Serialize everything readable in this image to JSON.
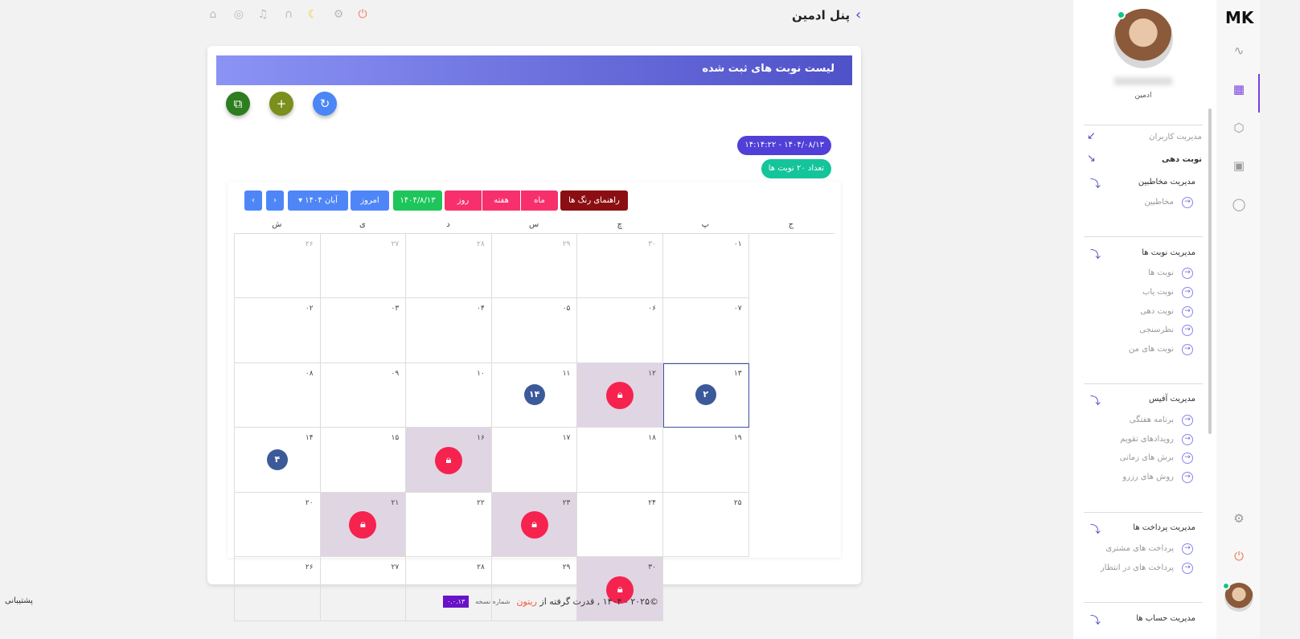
{
  "header": {
    "title": "پنل ادمین",
    "icons": [
      "home-icon",
      "shield-icon",
      "bell-icon",
      "headset-icon",
      "moon-icon",
      "gear-icon",
      "power-icon"
    ]
  },
  "card": {
    "title": "لیست نوبت های ثبت شده",
    "actions": [
      "add-multiple-icon",
      "add-icon",
      "refresh-icon"
    ],
    "datetime": "۱۴۰۴/۰۸/۱۳ - ۱۴:۱۴:۲۲",
    "count": "تعداد ۲۰ نوبت ها"
  },
  "toolbar": {
    "color_guide": "راهنمای رنگ ها",
    "month": "ماه",
    "week": "هفته",
    "day": "روز",
    "current_date": "۱۴۰۴/۸/۱۳",
    "today": "امروز",
    "month_select": "آبان ۱۴۰۴",
    "prev": "‹",
    "next": "›"
  },
  "calendar": {
    "weekdays": [
      "ش",
      "ی",
      "د",
      "س",
      "چ",
      "پ",
      "ج"
    ],
    "weeks": [
      [
        {
          "d": "۲۶",
          "other": true
        },
        {
          "d": "۲۷",
          "other": true
        },
        {
          "d": "۲۸",
          "other": true
        },
        {
          "d": "۲۹",
          "other": true
        },
        {
          "d": "۳۰",
          "other": true
        },
        {
          "d": "۰۱"
        },
        {
          "d": "۰۲"
        }
      ],
      [
        {
          "d": "۰۳"
        },
        {
          "d": "۰۴"
        },
        {
          "d": "۰۵"
        },
        {
          "d": "۰۶"
        },
        {
          "d": "۰۷"
        },
        {
          "d": "۰۸"
        },
        {
          "d": "۰۹"
        }
      ],
      [
        {
          "d": "۱۰"
        },
        {
          "d": "۱۱",
          "count": "۱۴"
        },
        {
          "d": "۱۲",
          "locked": true
        },
        {
          "d": "۱۳",
          "count": "۲",
          "today": true
        },
        {
          "d": "۱۴",
          "count": "۴"
        },
        {
          "d": "۱۵"
        },
        {
          "d": "۱۶",
          "locked": true
        }
      ],
      [
        {
          "d": "۱۷"
        },
        {
          "d": "۱۸"
        },
        {
          "d": "۱۹"
        },
        {
          "d": "۲۰"
        },
        {
          "d": "۲۱",
          "locked": true
        },
        {
          "d": "۲۲"
        },
        {
          "d": "۲۳",
          "locked": true
        }
      ],
      [
        {
          "d": "۲۴"
        },
        {
          "d": "۲۵"
        },
        {
          "d": "۲۶"
        },
        {
          "d": "۲۷"
        },
        {
          "d": "۲۸"
        },
        {
          "d": "۲۹"
        },
        {
          "d": "۳۰",
          "locked": true
        }
      ]
    ]
  },
  "sidebar": {
    "role": "ادمین",
    "groups": [
      {
        "label": "مدیریت کاربران"
      },
      {
        "label": "نوبت دهی"
      },
      {
        "label": "مدیریت مخاطبین",
        "items": [
          "مخاطبین"
        ]
      },
      {
        "label": "مدیریت نوبت ها",
        "items": [
          "نوبت ها",
          "نوبت یاب",
          "نوبت دهی",
          "نظرسنجی",
          "نوبت های من"
        ]
      },
      {
        "label": "مدیریت آفیس",
        "items": [
          "برنامه هفتگی",
          "رویدادهای تقویم",
          "برش های زمانی",
          "روش های رزرو"
        ]
      },
      {
        "label": "مدیریت پرداخت ها",
        "items": [
          "پرداخت های مشتری",
          "پرداخت های در انتظار"
        ]
      },
      {
        "label": "مدیریت حساب ها"
      }
    ]
  },
  "rail": {
    "logo": "MK"
  },
  "footer": {
    "copyright": "©۲۰۲۵ - ۱۴۰۴ , قدرت گرفته از",
    "brand": "ریتون",
    "version_label": "شماره نسخه",
    "version": "۰.۰.۱۳",
    "support": "پشتیبانی"
  },
  "colors": {
    "accent": "#5b3fd6",
    "locked": "#f5234e",
    "badge": "#3c5a9a"
  }
}
